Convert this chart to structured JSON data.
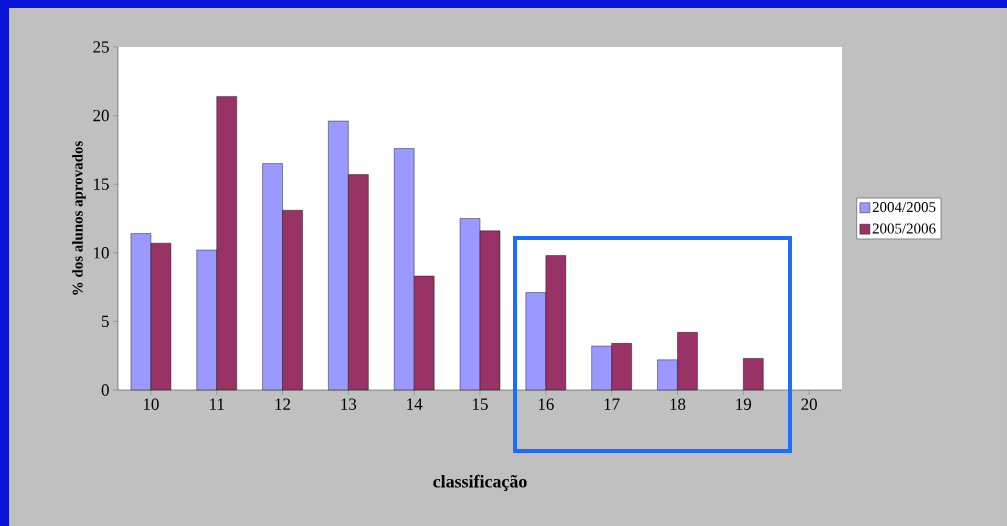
{
  "chart_data": {
    "type": "bar",
    "xlabel": "classificação",
    "ylabel": "% dos alunos aprovados",
    "categories": [
      "10",
      "11",
      "12",
      "13",
      "14",
      "15",
      "16",
      "17",
      "18",
      "19",
      "20"
    ],
    "series": [
      {
        "name": "2004/2005",
        "color": "#9999ff",
        "values": [
          11.4,
          10.2,
          16.5,
          19.6,
          17.6,
          12.5,
          7.1,
          3.2,
          2.2,
          null,
          null
        ]
      },
      {
        "name": "2005/2006",
        "color": "#993366",
        "values": [
          10.7,
          21.4,
          13.1,
          15.7,
          8.3,
          11.6,
          9.8,
          3.4,
          4.2,
          2.3,
          null
        ]
      }
    ],
    "ylim": [
      0,
      25
    ],
    "yticks": [
      0,
      5,
      10,
      15,
      20,
      25
    ],
    "grid": false,
    "legend": "right"
  }
}
